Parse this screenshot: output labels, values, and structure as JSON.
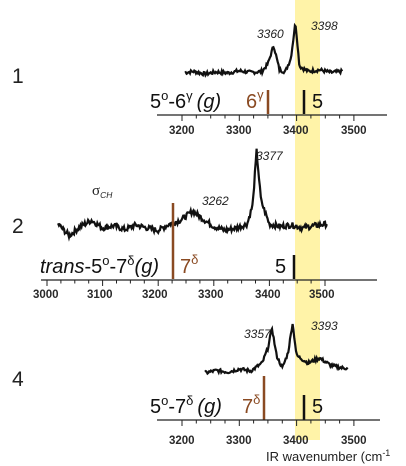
{
  "top_partial_label": "",
  "panels": [
    {
      "row_label": "1",
      "peak_labels": [
        "3360",
        "3398"
      ],
      "assignment": {
        "prefix": "",
        "a": "5",
        "a_sup": "o",
        "b": "-6",
        "b_sup": "γ",
        "conf": "(g)"
      },
      "markers": [
        {
          "label": "6",
          "sup": "γ",
          "color": "#8a4a22"
        },
        {
          "label": "5",
          "sup": "",
          "color": "#111111"
        }
      ],
      "ticks": [
        "3200",
        "3300",
        "3400",
        "3500"
      ]
    },
    {
      "row_label": "2",
      "peak_labels": [
        "3377",
        "3262"
      ],
      "sigma": {
        "symbol": "σ",
        "sub": "CH"
      },
      "assignment": {
        "prefix": "trans",
        "a": "5",
        "a_sup": "o",
        "b": "-7",
        "b_sup": "δ",
        "conf": "(g)"
      },
      "markers": [
        {
          "label": "7",
          "sup": "δ",
          "color": "#8a4a22"
        },
        {
          "label": "5",
          "sup": "",
          "color": "#111111"
        }
      ],
      "ticks": [
        "3000",
        "3100",
        "3200",
        "3300",
        "3400",
        "3500"
      ]
    },
    {
      "row_label": "4",
      "peak_labels": [
        "3357",
        "3393"
      ],
      "assignment": {
        "prefix": "",
        "a": "5",
        "a_sup": "o",
        "b": "-7",
        "b_sup": "δ",
        "conf": "(g)"
      },
      "markers": [
        {
          "label": "7",
          "sup": "δ",
          "color": "#8a4a22"
        },
        {
          "label": "5",
          "sup": "",
          "color": "#111111"
        }
      ],
      "ticks": [
        "3200",
        "3300",
        "3400",
        "3500"
      ]
    }
  ],
  "xaxis_label": "IR wavenumber (cm",
  "xaxis_label_tail": "-1",
  "colors": {
    "highlight": "#fff3a8",
    "brown": "#8a4a22",
    "trace": "#111111"
  },
  "chart_data": [
    {
      "type": "line",
      "title": "",
      "xlabel": "IR wavenumber (cm-1)",
      "xlim": [
        3200,
        3500
      ],
      "highlight_band": [
        3385,
        3425
      ],
      "peaks": [
        {
          "x": 3360,
          "height": 0.55
        },
        {
          "x": 3398,
          "height": 1.0
        }
      ],
      "x": [
        3200,
        3220,
        3240,
        3260,
        3280,
        3300,
        3320,
        3340,
        3350,
        3360,
        3370,
        3380,
        3390,
        3398,
        3405,
        3420,
        3440,
        3460,
        3480
      ],
      "y": [
        0.02,
        0.05,
        0.0,
        0.04,
        0.02,
        0.06,
        0.03,
        0.05,
        0.2,
        0.55,
        0.08,
        0.04,
        0.3,
        1.0,
        0.15,
        0.05,
        0.08,
        0.03,
        0.05
      ],
      "assignment_lines": [
        {
          "label": "6γ",
          "x": 3338
        },
        {
          "label": "5",
          "x": 3398
        }
      ]
    },
    {
      "type": "line",
      "title": "",
      "xlabel": "IR wavenumber (cm-1)",
      "xlim": [
        2980,
        3520
      ],
      "highlight_band": [
        3385,
        3425
      ],
      "peaks": [
        {
          "x": 3262,
          "height": 0.22
        },
        {
          "x": 3377,
          "height": 1.0
        }
      ],
      "x": [
        3020,
        3040,
        3060,
        3080,
        3100,
        3120,
        3140,
        3160,
        3180,
        3200,
        3220,
        3240,
        3262,
        3280,
        3300,
        3320,
        3340,
        3360,
        3370,
        3377,
        3385,
        3400,
        3420,
        3440,
        3460,
        3480,
        3500
      ],
      "y": [
        0.05,
        -0.1,
        0.02,
        0.1,
        0.0,
        0.03,
        -0.02,
        0.04,
        0.0,
        -0.03,
        0.05,
        0.1,
        0.22,
        0.12,
        0.02,
        -0.03,
        0.0,
        0.05,
        0.3,
        1.0,
        0.35,
        0.05,
        0.02,
        0.04,
        0.0,
        0.03,
        0.05
      ],
      "assignment_lines": [
        {
          "label": "7δ",
          "x": 3185
        },
        {
          "label": "5",
          "x": 3383
        }
      ]
    },
    {
      "type": "line",
      "title": "",
      "xlabel": "IR wavenumber (cm-1)",
      "xlim": [
        3200,
        3520
      ],
      "highlight_band": [
        3385,
        3425
      ],
      "peaks": [
        {
          "x": 3357,
          "height": 0.9
        },
        {
          "x": 3393,
          "height": 1.0
        }
      ],
      "x": [
        3240,
        3260,
        3280,
        3300,
        3320,
        3340,
        3350,
        3357,
        3365,
        3375,
        3385,
        3393,
        3400,
        3420,
        3440,
        3460,
        3480
      ],
      "y": [
        0.0,
        0.05,
        0.02,
        0.08,
        0.04,
        0.2,
        0.5,
        0.9,
        0.35,
        0.1,
        0.4,
        1.0,
        0.35,
        0.2,
        0.3,
        0.15,
        0.1
      ],
      "assignment_lines": [
        {
          "label": "7δ",
          "x": 3335
        },
        {
          "label": "5",
          "x": 3398
        }
      ]
    }
  ]
}
